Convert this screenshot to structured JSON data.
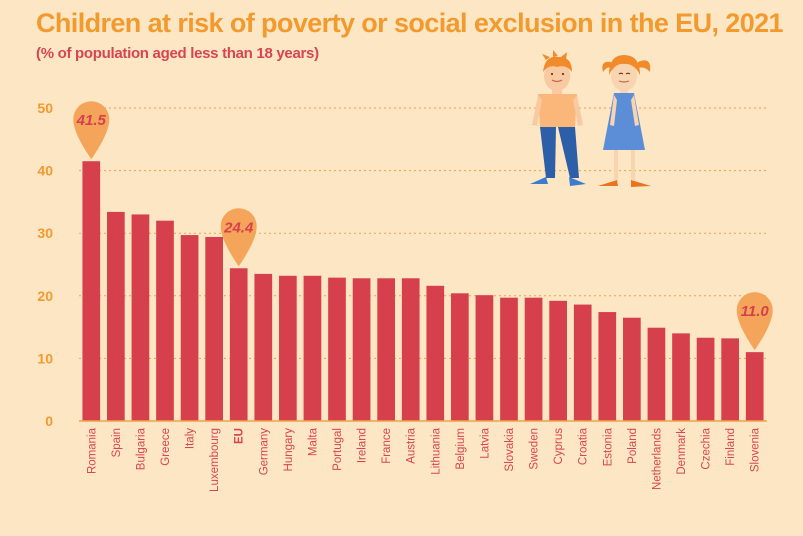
{
  "title": "Children at risk of poverty or social exclusion in the EU, 2021",
  "subtitle": "(% of population aged less than 18 years)",
  "colors": {
    "background": "#fde6c4",
    "bar": "#d6404c",
    "title": "#f29a2e",
    "subtitle": "#d64550",
    "gridline": "#f0a24a",
    "tick_label": "#f29a2e",
    "category_label": "#d64550",
    "callout": "#f5a55a",
    "callout_text": "#d6404c"
  },
  "chart_data": {
    "type": "bar",
    "title": "Children at risk of poverty or social exclusion in the EU, 2021",
    "subtitle": "(% of population aged less than 18 years)",
    "categories": [
      "Romania",
      "Spain",
      "Bulgaria",
      "Greece",
      "Italy",
      "Luxembourg",
      "EU",
      "Germany",
      "Hungary",
      "Malta",
      "Portugal",
      "Ireland",
      "France",
      "Austria",
      "Lithuania",
      "Belgium",
      "Latvia",
      "Slovakia",
      "Sweden",
      "Cyprus",
      "Croatia",
      "Estonia",
      "Poland",
      "Netherlands",
      "Denmark",
      "Czechia",
      "Finland",
      "Slovenia"
    ],
    "values": [
      41.5,
      33.4,
      33.0,
      32.0,
      29.7,
      29.4,
      24.4,
      23.5,
      23.2,
      23.2,
      22.9,
      22.8,
      22.8,
      22.8,
      21.6,
      20.4,
      20.1,
      19.7,
      19.7,
      19.2,
      18.6,
      17.4,
      16.5,
      14.9,
      14.0,
      13.3,
      13.2,
      11.0
    ],
    "yticks": [
      0,
      10,
      20,
      30,
      40,
      50
    ],
    "ylim": [
      0,
      50
    ],
    "grid": true,
    "highlighted_category": "EU",
    "callouts": [
      {
        "category": "Romania",
        "label": "41.5"
      },
      {
        "category": "EU",
        "label": "24.4"
      },
      {
        "category": "Slovenia",
        "label": "11.0"
      }
    ]
  },
  "illustration": {
    "figures": [
      "boy-figure",
      "girl-figure"
    ]
  }
}
